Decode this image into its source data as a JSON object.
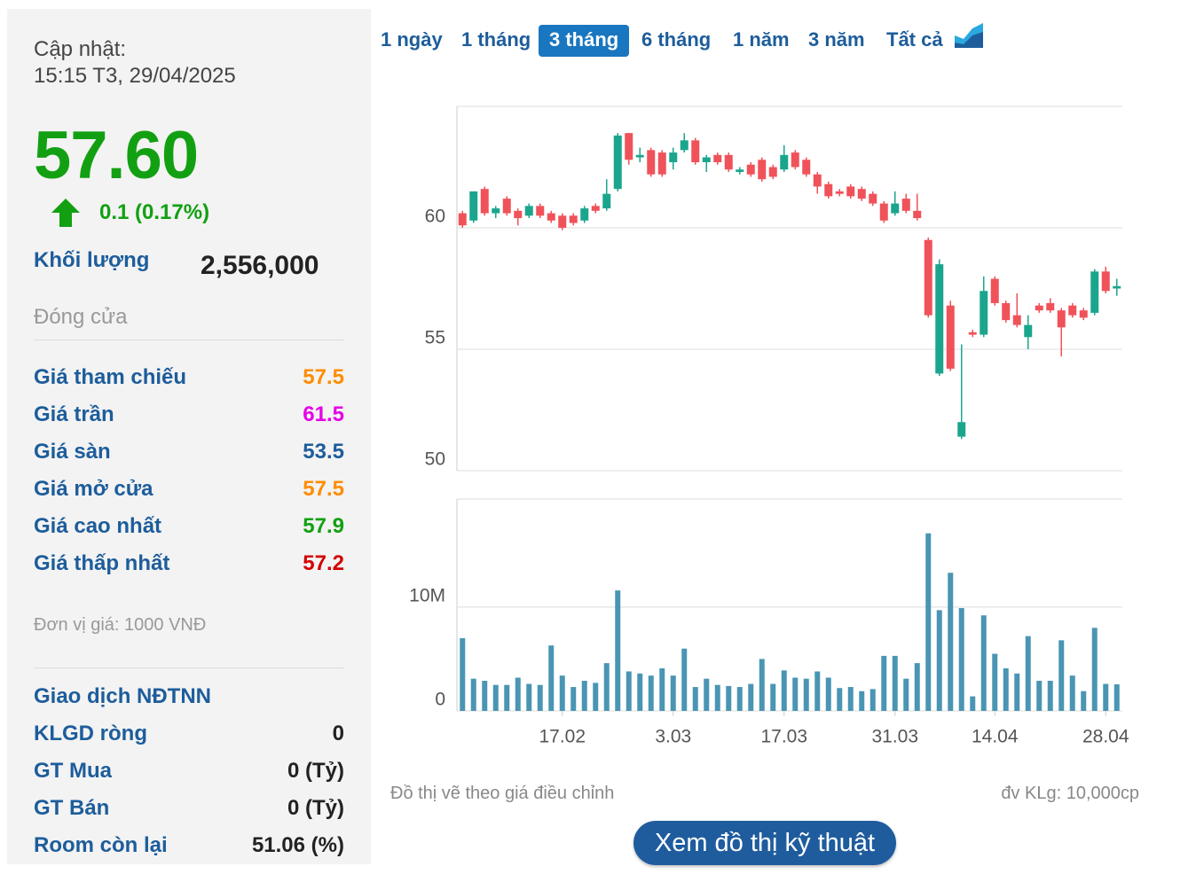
{
  "panel": {
    "update_label": "Cập nhật:",
    "update_time": "15:15 T3, 29/04/2025",
    "price": "57.60",
    "change": "0.1 (0.17%)",
    "volume_label": "Khối lượng",
    "volume": "2,556,000",
    "status": "Đóng cửa",
    "stats": [
      {
        "label": "Giá tham chiếu",
        "value": "57.5"
      },
      {
        "label": "Giá trần",
        "value": "61.5"
      },
      {
        "label": "Giá sàn",
        "value": "53.5"
      },
      {
        "label": "Giá mở cửa",
        "value": "57.5"
      },
      {
        "label": "Giá cao nhất",
        "value": "57.9"
      },
      {
        "label": "Giá thấp nhất",
        "value": "57.2"
      }
    ],
    "unit_note": "Đơn vị giá: 1000 VNĐ",
    "foreign_title": "Giao dịch NĐTNN",
    "foreign": [
      {
        "label": "KLGD ròng",
        "value": "0"
      },
      {
        "label": "GT Mua",
        "value": "0 (Tỷ)"
      },
      {
        "label": "GT Bán",
        "value": "0 (Tỷ)"
      },
      {
        "label": "Room còn lại",
        "value": "51.06 (%)"
      }
    ]
  },
  "tabs": [
    "1 ngày",
    "1 tháng",
    "3 tháng",
    "6 tháng",
    "1 năm",
    "3 năm",
    "Tất cả"
  ],
  "active_tab": 2,
  "chart_data": {
    "type": "candlestick",
    "categories": [
      null,
      null,
      null,
      null,
      null,
      null,
      null,
      null,
      null,
      "17.02",
      null,
      null,
      null,
      null,
      null,
      null,
      null,
      null,
      null,
      "3.03",
      null,
      null,
      null,
      null,
      null,
      null,
      null,
      null,
      null,
      "17.03",
      null,
      null,
      null,
      null,
      null,
      null,
      null,
      null,
      null,
      "31.03",
      null,
      null,
      null,
      null,
      null,
      null,
      null,
      null,
      "14.04",
      null,
      null,
      null,
      null,
      null,
      null,
      null,
      null,
      null,
      "28.04",
      null
    ],
    "open": [
      60.6,
      60.3,
      61.6,
      60.6,
      61.2,
      60.7,
      60.5,
      60.9,
      60.6,
      60.5,
      60.5,
      60.3,
      60.9,
      60.8,
      61.6,
      63.9,
      62.9,
      63.2,
      63.1,
      62.7,
      63.2,
      63.6,
      62.7,
      63.0,
      63.0,
      62.3,
      62.6,
      62.8,
      62.5,
      62.4,
      63.1,
      62.8,
      62.2,
      61.8,
      61.5,
      61.7,
      61.6,
      61.4,
      61.0,
      60.6,
      61.2,
      60.7,
      59.5,
      54.0,
      56.8,
      51.4,
      55.7,
      55.6,
      57.9,
      56.9,
      56.4,
      55.5,
      56.8,
      56.9,
      56.6,
      56.8,
      56.6,
      56.5,
      58.2,
      57.5
    ],
    "high": [
      60.7,
      61.5,
      61.7,
      60.9,
      61.3,
      60.8,
      61.0,
      61.0,
      60.7,
      60.6,
      60.6,
      60.9,
      61.0,
      62.0,
      63.9,
      63.9,
      63.3,
      63.3,
      63.2,
      63.3,
      63.9,
      63.7,
      63.0,
      63.1,
      63.1,
      62.5,
      62.7,
      62.9,
      62.6,
      63.4,
      63.2,
      62.9,
      62.3,
      61.9,
      61.6,
      61.8,
      61.7,
      61.5,
      61.1,
      61.5,
      61.4,
      61.4,
      59.6,
      58.7,
      57.0,
      55.2,
      55.8,
      58.0,
      58.0,
      57.0,
      57.3,
      56.4,
      56.9,
      57.1,
      56.7,
      56.9,
      56.7,
      58.3,
      58.4,
      57.9
    ],
    "low": [
      60.0,
      60.2,
      60.5,
      60.4,
      60.5,
      60.1,
      60.4,
      60.4,
      60.2,
      59.9,
      60.1,
      60.2,
      60.6,
      60.7,
      61.5,
      62.6,
      62.7,
      62.1,
      62.1,
      62.4,
      63.1,
      62.6,
      62.3,
      62.6,
      62.3,
      62.2,
      62.1,
      61.9,
      62.0,
      62.3,
      62.4,
      62.1,
      61.4,
      61.2,
      61.3,
      61.2,
      61.1,
      60.9,
      60.2,
      60.5,
      60.6,
      60.3,
      56.3,
      53.9,
      54.1,
      51.3,
      55.5,
      55.5,
      56.8,
      56.1,
      55.9,
      55.0,
      56.5,
      56.5,
      54.7,
      56.3,
      56.2,
      56.4,
      57.3,
      57.2
    ],
    "close": [
      60.1,
      61.5,
      60.6,
      60.8,
      60.6,
      60.4,
      60.9,
      60.5,
      60.3,
      60.0,
      60.2,
      60.8,
      60.7,
      61.4,
      63.8,
      62.8,
      63.0,
      62.2,
      62.2,
      63.1,
      63.6,
      62.7,
      62.9,
      62.7,
      62.4,
      62.4,
      62.2,
      62.0,
      62.1,
      63.0,
      62.5,
      62.2,
      61.7,
      61.3,
      61.4,
      61.3,
      61.2,
      61.0,
      60.3,
      61.0,
      60.7,
      60.4,
      56.4,
      58.5,
      54.2,
      52.0,
      55.6,
      57.4,
      56.9,
      56.2,
      56.0,
      56.0,
      56.6,
      56.6,
      55.9,
      56.4,
      56.3,
      58.2,
      57.4,
      57.6
    ],
    "up_color": "#1ba58d",
    "down_color": "#f0525a",
    "ylim": [
      50,
      65
    ],
    "yticks": [
      50,
      55,
      60
    ],
    "grid": true,
    "volume": {
      "values": [
        7000000,
        3100000,
        2900000,
        2500000,
        2500000,
        3200000,
        2600000,
        2500000,
        6300000,
        3400000,
        2300000,
        2900000,
        2700000,
        4600000,
        11600000,
        3800000,
        3600000,
        3400000,
        4100000,
        3400000,
        6000000,
        2300000,
        3100000,
        2500000,
        2400000,
        2300000,
        2600000,
        5000000,
        2600000,
        3900000,
        3200000,
        3100000,
        3800000,
        3200000,
        2200000,
        2300000,
        1900000,
        2100000,
        5300000,
        5300000,
        3100000,
        4600000,
        17100000,
        9700000,
        13300000,
        9900000,
        1400000,
        9200000,
        5500000,
        4100000,
        3600000,
        7200000,
        2900000,
        2900000,
        6800000,
        3400000,
        1900000,
        8000000,
        2600000,
        2556000
      ],
      "color": "#4a95b3",
      "ylim": [
        0,
        20400000
      ],
      "yticks": [
        0,
        {
          "value": 10000000,
          "label": "10M"
        }
      ]
    },
    "note": "Đồ thị vẽ theo giá điều chỉnh",
    "volume_unit": "đv KLg: 10,000cp"
  },
  "button": "Xem đồ thị kỹ thuật"
}
